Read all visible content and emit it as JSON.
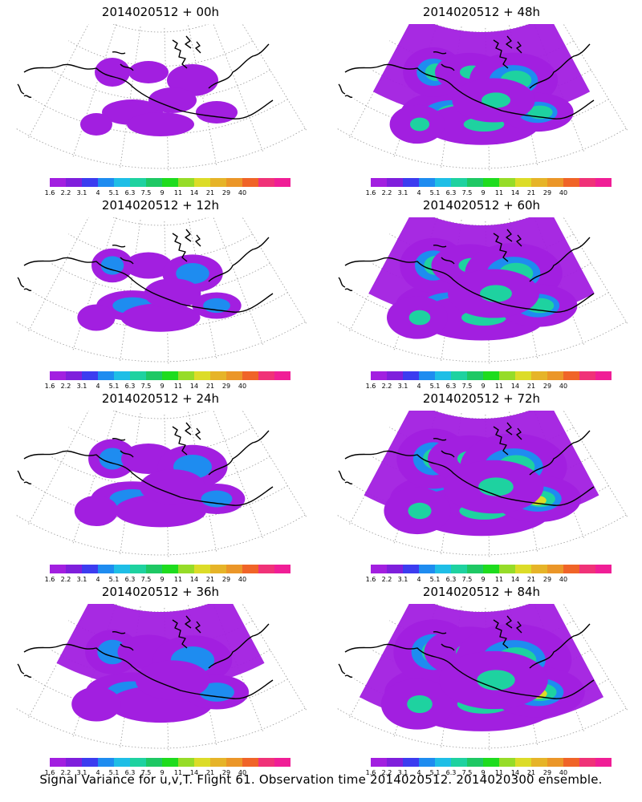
{
  "caption": "Signal Variance for u,v,T. Flight 61. Observation time 2014020512. 2014020300 ensemble.",
  "colorbar": {
    "colors": [
      "#a21fe0",
      "#7f1fdc",
      "#3c3cf0",
      "#1e8cf0",
      "#1ebee6",
      "#1ed2a0",
      "#1ec864",
      "#1edc1e",
      "#96dc28",
      "#dcdc28",
      "#e6b428",
      "#eb9628",
      "#f06428",
      "#f03278",
      "#f01e96"
    ],
    "labels": [
      "1.6",
      "2.2",
      "3.1",
      "4",
      "5.1",
      "6.3",
      "7.5",
      "9",
      "11",
      "14",
      "21",
      "29",
      "40"
    ]
  },
  "panels": [
    {
      "title": "2014020512 + 00h",
      "level": 0
    },
    {
      "title": "2014020512 + 48h",
      "level": 4
    },
    {
      "title": "2014020512 + 12h",
      "level": 1
    },
    {
      "title": "2014020512 + 60h",
      "level": 5
    },
    {
      "title": "2014020512 + 24h",
      "level": 2
    },
    {
      "title": "2014020512 + 72h",
      "level": 6
    },
    {
      "title": "2014020512 + 36h",
      "level": 3
    },
    {
      "title": "2014020512 + 84h",
      "level": 7
    }
  ]
}
